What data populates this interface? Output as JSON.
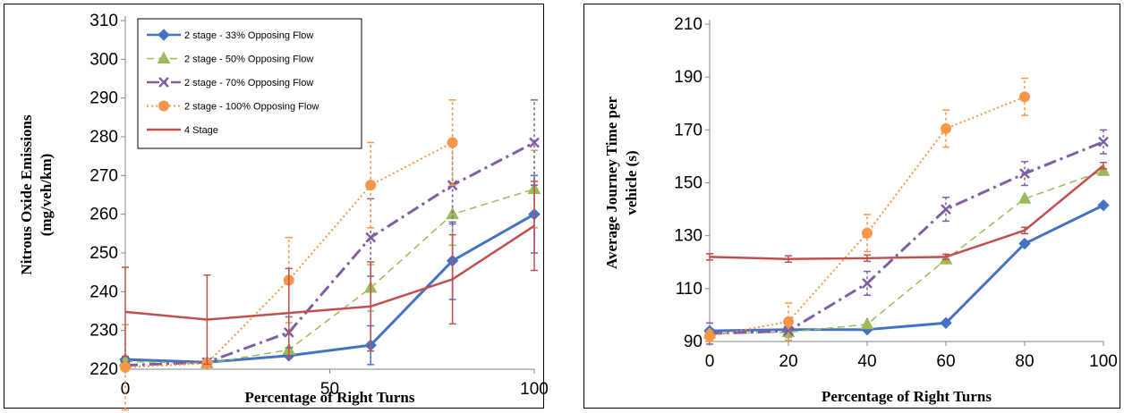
{
  "series_styles": [
    {
      "name": "2 stage - 33% Opposing Flow",
      "color": "#4472C4",
      "dash": "",
      "marker": "diamond",
      "width": 3
    },
    {
      "name": "2 stage - 50% Opposing Flow",
      "color": "#9BBB59",
      "dash": "8,5",
      "marker": "triangle",
      "width": 1.5
    },
    {
      "name": "2 stage - 70% Opposing Flow",
      "color": "#7F5FA1",
      "dash": "14,5,3,5",
      "marker": "x",
      "width": 3
    },
    {
      "name": "2 stage - 100% Opposing Flow",
      "color": "#F79646",
      "dash": "2,3",
      "marker": "circle",
      "width": 2
    },
    {
      "name": "4 Stage",
      "color": "#C0504D",
      "dash": "",
      "marker": "none",
      "width": 2.5
    }
  ],
  "chart_data": [
    {
      "type": "line",
      "xlabel": "Percentage of Right Turns",
      "ylabel": "Nitrous Oxide Emissions (mg/veh/km)",
      "ylabel_lines": [
        "Nitrous Oxide Emissions",
        "(mg/veh/km)"
      ],
      "xlim": [
        0,
        100
      ],
      "ylim": [
        220,
        310
      ],
      "x_ticks": [
        0,
        50,
        100
      ],
      "y_ticks": [
        220,
        230,
        240,
        250,
        260,
        270,
        280,
        290,
        300,
        310
      ],
      "x": [
        0,
        20,
        40,
        60,
        80,
        100
      ],
      "legend": "top-left",
      "grid": false,
      "series": [
        {
          "name": "2 stage - 33% Opposing Flow",
          "values": [
            222.5,
            221.8,
            223.5,
            226.2,
            248,
            260
          ],
          "errors": [
            0,
            0,
            0,
            5,
            10,
            10
          ]
        },
        {
          "name": "2 stage - 50% Opposing Flow",
          "values": [
            222,
            221.5,
            225,
            241,
            260,
            266.5
          ],
          "errors": [
            0,
            0,
            0,
            6,
            8,
            10
          ]
        },
        {
          "name": "2 stage - 70% Opposing Flow",
          "values": [
            221,
            221.8,
            229.5,
            254,
            267.5,
            278.5
          ],
          "errors": [
            0,
            0,
            4,
            10,
            10,
            11
          ]
        },
        {
          "name": "2 stage - 100% Opposing Flow",
          "values": [
            220.5,
            221.5,
            243,
            267.5,
            278.5,
            null
          ],
          "errors": [
            11,
            0,
            11,
            11,
            11,
            0
          ]
        },
        {
          "name": "4 Stage",
          "values": [
            234.8,
            232.8,
            234.5,
            236.2,
            243.2,
            257
          ],
          "errors": [
            11.5,
            11.5,
            11.5,
            11.5,
            11.5,
            11.5
          ]
        }
      ]
    },
    {
      "type": "line",
      "xlabel": "Percentage of Right Turns",
      "ylabel": "Average Journey Time per vehicle (s)",
      "ylabel_lines": [
        "Average Journey Time per",
        "vehicle (s)"
      ],
      "xlim": [
        0,
        100
      ],
      "ylim": [
        90,
        210
      ],
      "x_ticks": [
        0,
        20,
        40,
        60,
        80,
        100
      ],
      "y_ticks": [
        90,
        110,
        130,
        150,
        170,
        190,
        210
      ],
      "x": [
        0,
        20,
        40,
        60,
        80,
        100
      ],
      "legend": "none",
      "grid": false,
      "series": [
        {
          "name": "2 stage - 33% Opposing Flow",
          "values": [
            94,
            94.5,
            94.5,
            97,
            127,
            141.5
          ],
          "errors": [
            0,
            0,
            0,
            0,
            0,
            0
          ]
        },
        {
          "name": "2 stage - 50% Opposing Flow",
          "values": [
            93,
            93.5,
            96.5,
            121,
            144,
            154.5
          ],
          "errors": [
            0,
            2,
            0,
            0,
            0,
            0
          ]
        },
        {
          "name": "2 stage - 70% Opposing Flow",
          "values": [
            93,
            94,
            112,
            140,
            153.5,
            165.5
          ],
          "errors": [
            4,
            0,
            4.5,
            4.5,
            4.5,
            4.5
          ]
        },
        {
          "name": "2 stage - 100% Opposing Flow",
          "values": [
            92,
            97.5,
            131,
            170.5,
            182.5,
            null
          ],
          "errors": [
            2,
            7,
            7,
            7,
            7,
            0
          ]
        },
        {
          "name": "4 Stage",
          "values": [
            122,
            121.2,
            121.5,
            122,
            132,
            156.5
          ],
          "errors": [
            1.2,
            1.2,
            1.2,
            1,
            1.2,
            1.2
          ]
        }
      ]
    }
  ]
}
